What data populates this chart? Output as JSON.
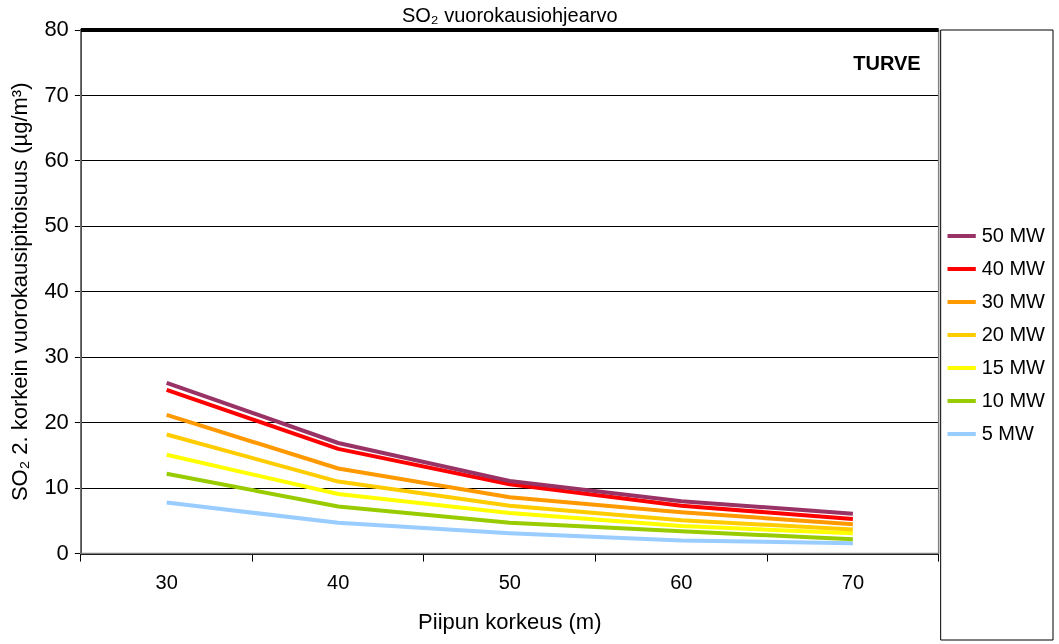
{
  "chart_data": {
    "type": "line",
    "xlabel": "Piipun korkeus (m)",
    "ylabel": "SO₂ 2. korkein vuorokausipitoisuus (µg/m³)",
    "categories": [
      "30",
      "40",
      "50",
      "60",
      "70"
    ],
    "series": [
      {
        "name": "50 MW",
        "color": "#993366",
        "values": [
          26.1,
          16.9,
          11.1,
          8.0,
          6.1
        ]
      },
      {
        "name": "40 MW",
        "color": "#ff0000",
        "values": [
          25.0,
          16.0,
          10.6,
          7.3,
          5.3
        ]
      },
      {
        "name": "30 MW",
        "color": "#ff9900",
        "values": [
          21.2,
          13.0,
          8.6,
          6.3,
          4.5
        ]
      },
      {
        "name": "20 MW",
        "color": "#ffcc00",
        "values": [
          18.2,
          11.0,
          7.3,
          5.1,
          3.7
        ]
      },
      {
        "name": "15 MW",
        "color": "#ffff00",
        "values": [
          15.1,
          9.1,
          6.2,
          4.2,
          3.1
        ]
      },
      {
        "name": "10 MW",
        "color": "#99cc00",
        "values": [
          12.2,
          7.2,
          4.7,
          3.4,
          2.2
        ]
      },
      {
        "name": "5 MW",
        "color": "#99ccff",
        "values": [
          7.8,
          4.7,
          3.1,
          2.0,
          1.6
        ]
      }
    ],
    "ylim": [
      0,
      80
    ],
    "yticks": [
      0,
      10,
      20,
      30,
      40,
      50,
      60,
      70,
      80
    ],
    "ref_lines": [
      {
        "axis": "y",
        "value": 80,
        "label": "SO₂ vuorokausiohjearvo",
        "color": "#000000"
      }
    ],
    "annotations": [
      "TURVE"
    ],
    "grid": "y",
    "legend": "right",
    "marker": "none",
    "line_style": "solid"
  }
}
